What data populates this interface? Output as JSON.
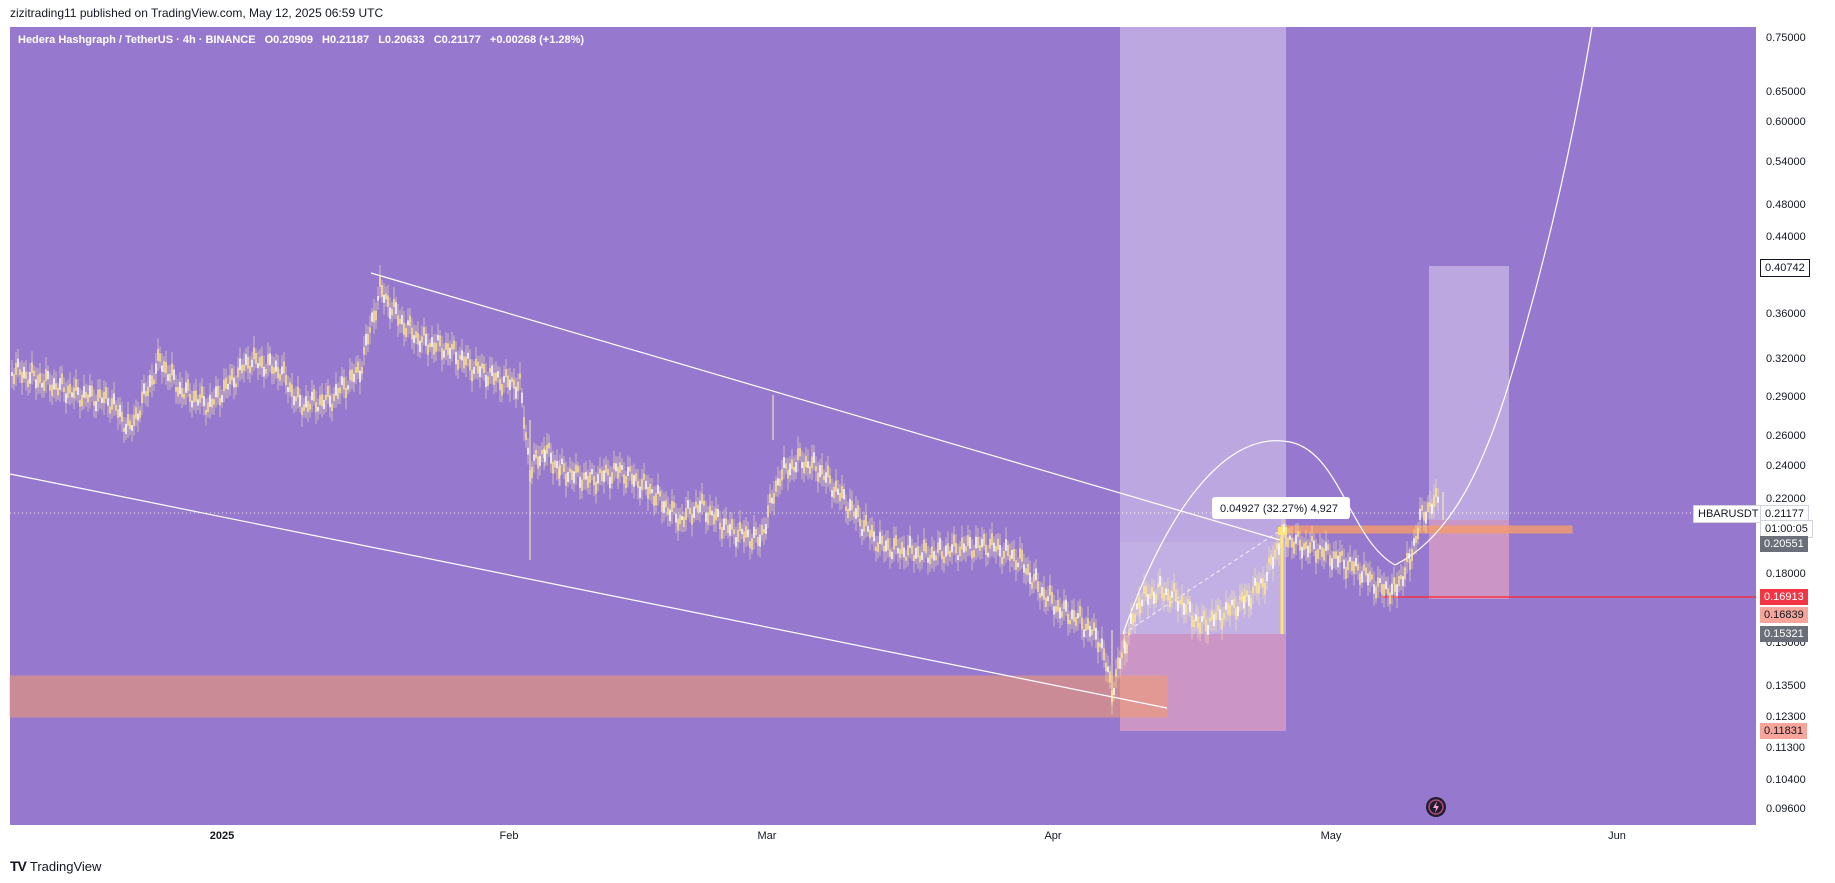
{
  "header": {
    "published_by": "zizitrading11 published on TradingView.com, May 12, 2025 06:59 UTC"
  },
  "symbol_bar": {
    "name": "Hedera Hashgraph / TetherUS · 4h · BINANCE",
    "open": "O0.20909",
    "high": "H0.21187",
    "low": "L0.20633",
    "close": "C0.21177",
    "change": "+0.00268 (+1.28%)"
  },
  "colors": {
    "background": "#9778cf",
    "candle": "#fff3b0",
    "zone_orange": "#f59b6b",
    "zone_light": "#c9b7e6",
    "zone_pink": "#d49ac4",
    "red_line": "#f23645"
  },
  "measure_label": "0.04927 (32.27%) 4,927",
  "price_axis": {
    "ticks": [
      "0.75000",
      "0.65000",
      "0.60000",
      "0.54000",
      "0.48000",
      "0.44000",
      "0.40000",
      "0.36000",
      "0.32000",
      "0.29000",
      "0.26000",
      "0.24000",
      "0.22000",
      "0.18000",
      "0.15000",
      "0.13500",
      "0.12300",
      "0.11300",
      "0.10400",
      "0.09600"
    ],
    "labels": {
      "target": "0.40742",
      "symbol_tag": "HBARUSDT",
      "current": "0.21177",
      "countdown": "01:00:05",
      "level_1": "0.20551",
      "red_level": "0.16913",
      "level_2": "0.16839",
      "level_3": "0.15321",
      "level_4": "0.11831"
    }
  },
  "time_axis": {
    "ticks": [
      "2025",
      "Feb",
      "Mar",
      "Apr",
      "May",
      "Jun"
    ]
  },
  "footer": {
    "brand": "TradingView",
    "logo_text": "TV"
  }
}
